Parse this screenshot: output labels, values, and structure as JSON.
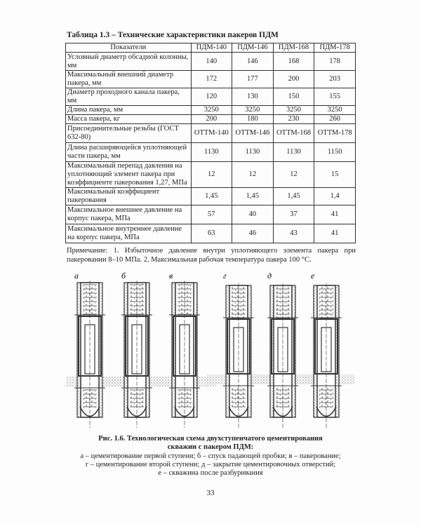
{
  "table": {
    "title": "Таблица 1.3 – Технические характеристики пакеров ПДМ",
    "headers": [
      "Показатели",
      "ПДМ-140",
      "ПДМ-146",
      "ПДМ-168",
      "ПДМ-178"
    ],
    "rows": [
      {
        "label": "Условный диаметр обсадной колонны, мм",
        "values": [
          "140",
          "146",
          "168",
          "178"
        ]
      },
      {
        "label": "Максимальный внешний диаметр пакера, мм",
        "values": [
          "172",
          "177",
          "200",
          "203"
        ]
      },
      {
        "label": "Диаметр проходного канала пакера, мм",
        "values": [
          "120",
          "130",
          "150",
          "155"
        ]
      },
      {
        "label": "Длина пакера, мм",
        "values": [
          "3250",
          "3250",
          "3250",
          "3250"
        ]
      },
      {
        "label": "Масса пакера, кг",
        "values": [
          "200",
          "180",
          "230",
          "260"
        ]
      },
      {
        "label": "Присоединительные резьбы (ГОСТ 632-80)",
        "values": [
          "ОТТМ-140",
          "ОТТМ-146",
          "ОТТМ-168",
          "ОТТМ-178"
        ]
      },
      {
        "label": "Длина расширяющейся уплотняющей части пакера, мм",
        "values": [
          "1130",
          "1130",
          "1130",
          "1150"
        ]
      },
      {
        "label": "Максимальный перепад давления на уплотняющий элемент пакера при коэффициенте пакерования 1,27, МПа",
        "values": [
          "12",
          "12",
          "12",
          "15"
        ]
      },
      {
        "label": "Максимальный коэффициент пакерования",
        "values": [
          "1,45",
          "1,45",
          "1,45",
          "1,4"
        ]
      },
      {
        "label": "Максимальное внешнее давление на корпус пакера, МПа",
        "values": [
          "57",
          "40",
          "37",
          "41"
        ]
      },
      {
        "label": "Максимальное внутреннее давление на корпус пакера, МПа",
        "values": [
          "63",
          "46",
          "43",
          "41"
        ]
      }
    ],
    "note": "Примечание: 1. Избыточное давление внутри уплотняющего элемента пакера при пакеровании 8–10 МПа. 2. Максимальная рабочая температура пакера 100 °С."
  },
  "figure": {
    "panel_labels": [
      "а",
      "б",
      "в",
      "г",
      "д",
      "е"
    ],
    "caption_title_1": "Рис. 1.6. Технологическая схема двухступенчатого цементирования",
    "caption_title_2": "скважин с пакером ПДМ:",
    "caption_line_1": "а – цементирование первой ступени; б – спуск падающей пробки; в – пакерование;",
    "caption_line_2": "г – цементирование второй ступени; д – закрытие цементировочных отверстий;",
    "caption_line_3": "е – скважина после разбуривания"
  },
  "page_number": "33"
}
